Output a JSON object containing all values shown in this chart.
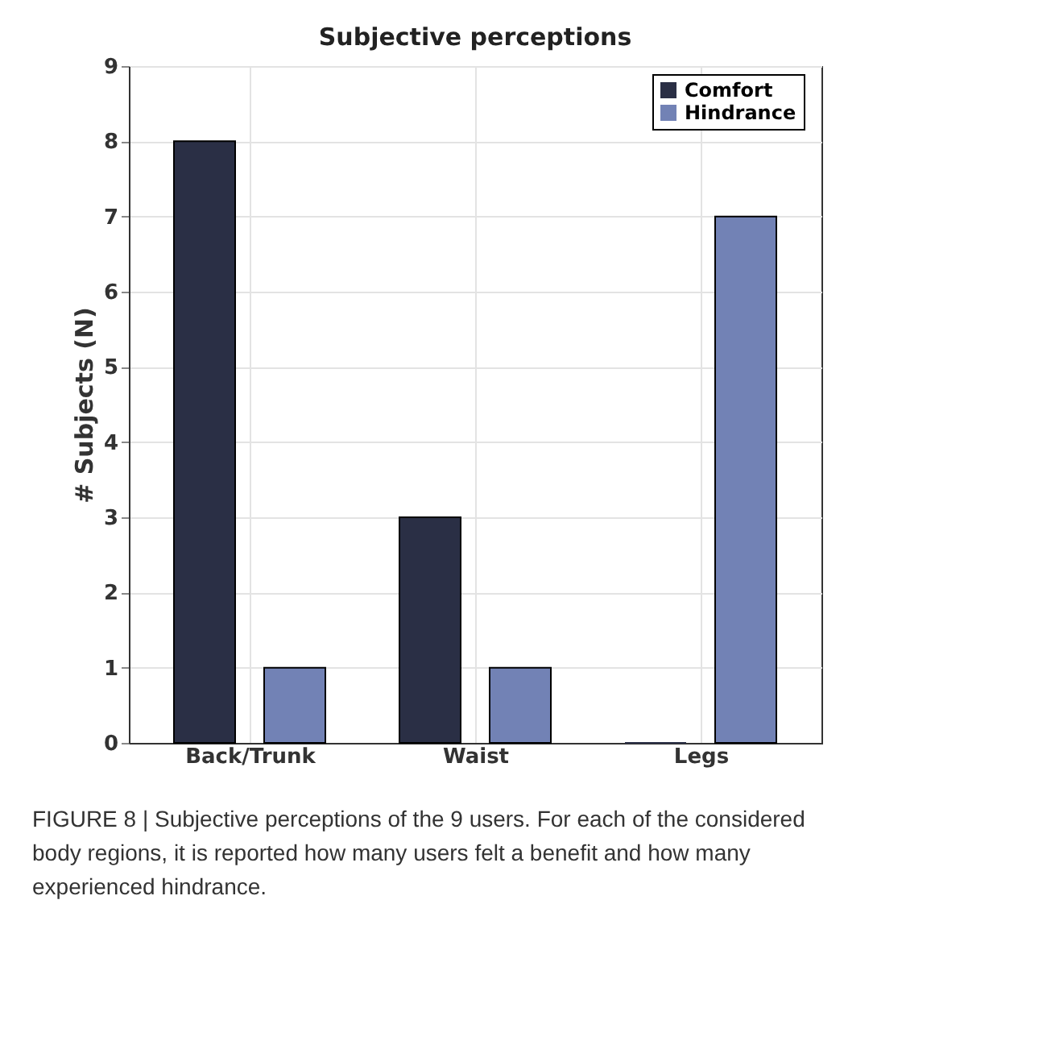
{
  "chart_data": {
    "type": "bar",
    "title": "Subjective perceptions",
    "ylabel": "# Subjects (N)",
    "categories": [
      "Back/Trunk",
      "Waist",
      "Legs"
    ],
    "series": [
      {
        "name": "Comfort",
        "color": "#2a2f45",
        "values": [
          8,
          3,
          0
        ]
      },
      {
        "name": "Hindrance",
        "color": "#7282b5",
        "values": [
          1,
          1,
          7
        ]
      }
    ],
    "ylim": [
      0,
      9
    ],
    "yticks": [
      0,
      1,
      2,
      3,
      4,
      5,
      6,
      7,
      8,
      9
    ],
    "grid": true,
    "legend": "top right",
    "annotations": [
      "FIGURE 8 | Subjective perceptions of the 9 users. For each of the considered body regions, it is reported how many users felt a benefit and how many experienced hindrance."
    ]
  }
}
